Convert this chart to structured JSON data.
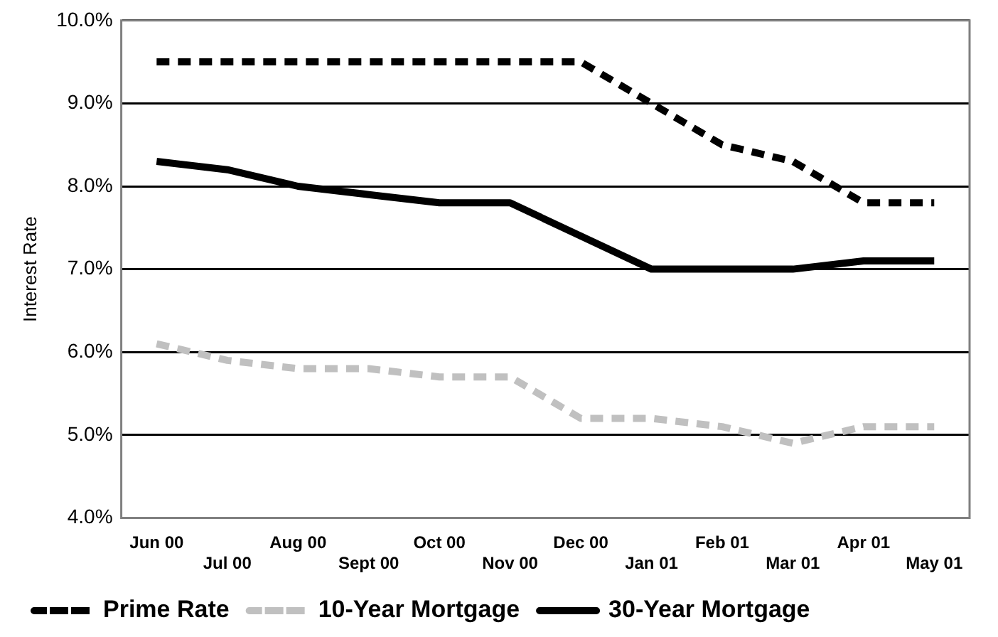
{
  "chart_data": {
    "type": "line",
    "ylabel": "Interest Rate",
    "categories": [
      "Jun 00",
      "Jul 00",
      "Aug 00",
      "Sept 00",
      "Oct 00",
      "Nov 00",
      "Dec 00",
      "Jan 01",
      "Feb 01",
      "Mar 01",
      "Apr 01",
      "May 01"
    ],
    "series": [
      {
        "name": "Prime Rate",
        "color": "#000000",
        "line_style": "dashed",
        "values": [
          9.5,
          9.5,
          9.5,
          9.5,
          9.5,
          9.5,
          9.5,
          9.0,
          8.5,
          8.3,
          7.8,
          7.8
        ]
      },
      {
        "name": "10-Year Mortgage",
        "color": "#c0c0c0",
        "line_style": "dashed",
        "values": [
          6.1,
          5.9,
          5.8,
          5.8,
          5.7,
          5.7,
          5.2,
          5.2,
          5.1,
          4.9,
          5.1,
          5.1
        ]
      },
      {
        "name": "30-Year Mortgage",
        "color": "#000000",
        "line_style": "solid",
        "values": [
          8.3,
          8.2,
          8.0,
          7.9,
          7.8,
          7.8,
          7.4,
          7.0,
          7.0,
          7.0,
          7.1,
          7.1
        ]
      }
    ],
    "ylim": [
      4,
      10
    ],
    "yticks": [
      {
        "value": 4,
        "label": "4.0%"
      },
      {
        "value": 5,
        "label": "5.0%"
      },
      {
        "value": 6,
        "label": "6.0%"
      },
      {
        "value": 7,
        "label": "7.0%"
      },
      {
        "value": 8,
        "label": "8.0%"
      },
      {
        "value": 9,
        "label": "9.0%"
      },
      {
        "value": 10,
        "label": "10.0%"
      }
    ],
    "grid": "y",
    "legend": "bottom",
    "marker": "none"
  }
}
